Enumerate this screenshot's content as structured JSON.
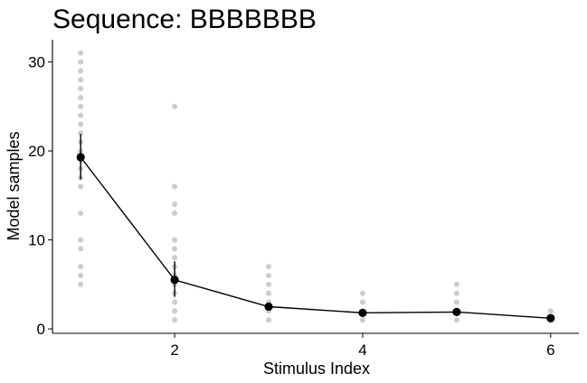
{
  "chart_data": {
    "type": "scatter",
    "title": "Sequence: BBBBBBB",
    "xlabel": "Stimulus Index",
    "ylabel": "Model samples",
    "xlim": [
      0.7,
      6.3
    ],
    "ylim": [
      -0.5,
      32.5
    ],
    "x_ticks": [
      2,
      4,
      6
    ],
    "y_ticks": [
      0,
      10,
      20,
      30
    ],
    "grid": false,
    "legend": "none",
    "colors": {
      "points": "#000000",
      "line": "#000000",
      "axis": "#000000"
    },
    "raw_samples": {
      "x": [
        1,
        2,
        3,
        4,
        5,
        6
      ],
      "values": [
        [
          5,
          6,
          7,
          9,
          10,
          13,
          16,
          17,
          18,
          19,
          20,
          21,
          22,
          23,
          24,
          25,
          26,
          27,
          28,
          29,
          30,
          31
        ],
        [
          1,
          2,
          3,
          4,
          5,
          6,
          7,
          8,
          9,
          10,
          13,
          14,
          16,
          25
        ],
        [
          1,
          2,
          3,
          4,
          5,
          6,
          7
        ],
        [
          1,
          2,
          3,
          4
        ],
        [
          1,
          2,
          3,
          4,
          5
        ],
        [
          1,
          2
        ]
      ]
    },
    "series": [
      {
        "x": [
          1,
          2,
          3,
          4,
          5,
          6
        ],
        "values": [
          19.3,
          5.5,
          2.5,
          1.8,
          1.9,
          1.2
        ],
        "error_low": [
          16.8,
          3.6,
          2.1,
          1.5,
          1.5,
          1.0
        ],
        "error_high": [
          21.9,
          7.6,
          2.9,
          2.1,
          2.3,
          1.4
        ]
      }
    ]
  }
}
